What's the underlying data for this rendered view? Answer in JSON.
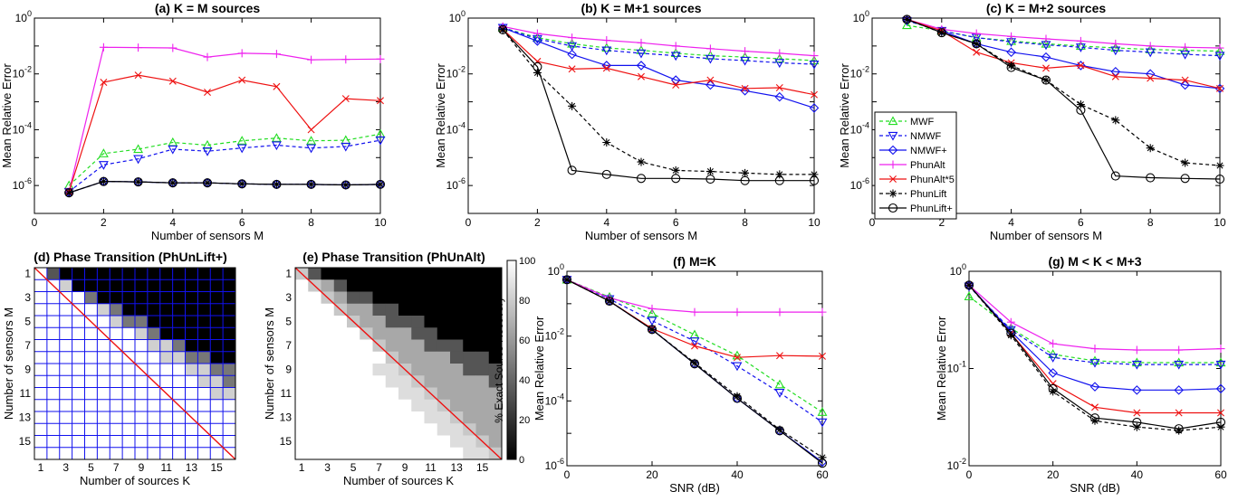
{
  "colors": {
    "MWF": "#22dd22",
    "NMWF": "#1111ee",
    "NMWF+": "#1111ee",
    "PhunAlt": "#ee22ee",
    "PhunAlt*5": "#ee1111",
    "PhunLift": "#000000",
    "PhunLift+": "#000000",
    "grid": "#1111ee",
    "diagonal": "#ee1111"
  },
  "legend": [
    "MWF",
    "NMWF",
    "NMWF+",
    "PhunAlt",
    "PhunAlt*5",
    "PhunLift",
    "PhunLift+"
  ],
  "chart_data": [
    {
      "type": "line",
      "id": "a",
      "title": "(a)  K = M sources",
      "xlabel": "Number of sensors M",
      "ylabel": "Mean Relative Error",
      "yscale": "log",
      "ylim": [
        1e-07,
        1
      ],
      "xlim": [
        0,
        10
      ],
      "xticks": [
        "0",
        "2",
        "4",
        "6",
        "8",
        "10"
      ],
      "x": [
        1,
        2,
        3,
        4,
        5,
        6,
        7,
        8,
        9,
        10
      ],
      "series": [
        {
          "name": "MWF",
          "values": [
            1e-06,
            1.4e-05,
            2e-05,
            3.5e-05,
            2.8e-05,
            4e-05,
            5e-05,
            4e-05,
            4.2e-05,
            7e-05
          ]
        },
        {
          "name": "NMWF",
          "values": [
            6e-07,
            5.5e-06,
            9e-06,
            2e-05,
            1.7e-05,
            2.2e-05,
            2.8e-05,
            2.2e-05,
            2.5e-05,
            4.2e-05
          ]
        },
        {
          "name": "NMWF+",
          "values": [
            5.5e-07,
            1.4e-06,
            1.35e-06,
            1.25e-06,
            1.25e-06,
            1.15e-06,
            1.1e-06,
            1.1e-06,
            1.05e-06,
            1.1e-06
          ]
        },
        {
          "name": "PhunAlt",
          "values": [
            6e-07,
            0.09,
            0.088,
            0.085,
            0.04,
            0.055,
            0.052,
            0.032,
            0.033,
            0.034
          ]
        },
        {
          "name": "PhunAlt*5",
          "values": [
            6e-07,
            0.005,
            0.009,
            0.0055,
            0.0022,
            0.006,
            0.0035,
            0.0001,
            0.0013,
            0.0011
          ]
        },
        {
          "name": "PhunLift",
          "values": [
            5.5e-07,
            1.4e-06,
            1.35e-06,
            1.25e-06,
            1.25e-06,
            1.15e-06,
            1.1e-06,
            1.1e-06,
            1.05e-06,
            1.1e-06
          ]
        },
        {
          "name": "PhunLift+",
          "values": [
            5.5e-07,
            1.4e-06,
            1.35e-06,
            1.25e-06,
            1.25e-06,
            1.15e-06,
            1.1e-06,
            1.1e-06,
            1.05e-06,
            1.1e-06
          ]
        }
      ]
    },
    {
      "type": "line",
      "id": "b",
      "title": "(b)  K = M+1 sources",
      "xlabel": "Number of sensors M",
      "ylabel": "Mean Relative Error",
      "yscale": "log",
      "ylim": [
        1e-07,
        1
      ],
      "xlim": [
        0,
        10
      ],
      "xticks": [
        "0",
        "2",
        "4",
        "6",
        "8",
        "10"
      ],
      "x": [
        1,
        2,
        3,
        4,
        5,
        6,
        7,
        8,
        9,
        10
      ],
      "series": [
        {
          "name": "MWF",
          "values": [
            0.45,
            0.2,
            0.12,
            0.085,
            0.07,
            0.055,
            0.045,
            0.04,
            0.035,
            0.03
          ]
        },
        {
          "name": "NMWF",
          "values": [
            0.45,
            0.18,
            0.1,
            0.07,
            0.055,
            0.045,
            0.035,
            0.03,
            0.025,
            0.022
          ]
        },
        {
          "name": "NMWF+",
          "values": [
            0.45,
            0.15,
            0.05,
            0.02,
            0.02,
            0.006,
            0.004,
            0.0025,
            0.0015,
            0.0006
          ]
        },
        {
          "name": "PhunAlt",
          "values": [
            0.5,
            0.28,
            0.2,
            0.16,
            0.13,
            0.1,
            0.08,
            0.065,
            0.055,
            0.045
          ]
        },
        {
          "name": "PhunAlt*5",
          "values": [
            0.4,
            0.028,
            0.015,
            0.016,
            0.008,
            0.004,
            0.006,
            0.003,
            0.0032,
            0.0018
          ]
        },
        {
          "name": "PhunLift",
          "values": [
            0.38,
            0.011,
            0.0007,
            3.5e-05,
            7e-06,
            3.5e-06,
            3.2e-06,
            2.8e-06,
            2.5e-06,
            2.5e-06
          ]
        },
        {
          "name": "PhunLift+",
          "values": [
            0.38,
            0.018,
            3.5e-06,
            2.5e-06,
            1.8e-06,
            1.8e-06,
            1.7e-06,
            1.5e-06,
            1.5e-06,
            1.5e-06
          ]
        }
      ]
    },
    {
      "type": "line",
      "id": "c",
      "title": "(c)  K = M+2 sources",
      "xlabel": "Number of sensors M",
      "ylabel": "Mean Relative Error",
      "yscale": "log",
      "ylim": [
        1e-07,
        1
      ],
      "xlim": [
        0,
        10
      ],
      "xticks": [
        "0",
        "2",
        "4",
        "6",
        "8",
        "10"
      ],
      "x": [
        1,
        2,
        3,
        4,
        5,
        6,
        7,
        8,
        9,
        10
      ],
      "series": [
        {
          "name": "MWF",
          "values": [
            0.55,
            0.35,
            0.2,
            0.15,
            0.12,
            0.1,
            0.085,
            0.075,
            0.07,
            0.065
          ]
        },
        {
          "name": "NMWF",
          "values": [
            0.8,
            0.35,
            0.2,
            0.14,
            0.11,
            0.09,
            0.07,
            0.06,
            0.05,
            0.045
          ]
        },
        {
          "name": "NMWF+",
          "values": [
            0.85,
            0.35,
            0.12,
            0.06,
            0.04,
            0.02,
            0.012,
            0.01,
            0.004,
            0.003
          ]
        },
        {
          "name": "PhunAlt",
          "values": [
            0.9,
            0.4,
            0.28,
            0.22,
            0.18,
            0.15,
            0.12,
            0.1,
            0.09,
            0.085
          ]
        },
        {
          "name": "PhunAlt*5",
          "values": [
            0.9,
            0.35,
            0.06,
            0.025,
            0.016,
            0.02,
            0.008,
            0.007,
            0.006,
            0.003
          ]
        },
        {
          "name": "PhunLift",
          "values": [
            0.9,
            0.3,
            0.12,
            0.02,
            0.006,
            0.0008,
            0.00022,
            2.2e-05,
            6.5e-06,
            5.2e-06
          ]
        },
        {
          "name": "PhunLift+",
          "values": [
            0.9,
            0.3,
            0.12,
            0.017,
            0.006,
            0.0005,
            2.2e-06,
            1.9e-06,
            1.8e-06,
            1.7e-06
          ]
        }
      ]
    },
    {
      "type": "heatmap",
      "id": "d",
      "title": "(d) Phase Transition (PhUnLift+)",
      "xlabel": "Number of sources K",
      "ylabel": "Number of sensors M",
      "xticks": [
        "1",
        "3",
        "5",
        "7",
        "9",
        "11",
        "13",
        "15"
      ],
      "yticks": [
        "1",
        "3",
        "5",
        "7",
        "9",
        "11",
        "13",
        "15"
      ],
      "grid": true,
      "rows": [
        "##,,,,,,,,,,,,,,",
        "#+#,,,,,,,,,,,,,",
        "##+##,,,,,,,,,,,",
        "###+#,,,,,,,,,,,",
        "####+##,,,,,,,,,",
        "#####+###,,,,,,,",
        "######+##,,,,,,,",
        "#######+###,,,,,",
        "########+###,,,,",
        "#########+####,,",
        "##########+#####",
        "###########+####",
        "############+###",
        "#############+##",
        "##############+#",
        "###############+"
      ]
    },
    {
      "type": "heatmap",
      "id": "e",
      "title": "(e) Phase Transition (PhUnAlt)",
      "xlabel": "Number of sources K",
      "ylabel": "Number of sensors M",
      "colorbar_label": "% Exact Source Recovery",
      "colorbar_ticks": [
        "0",
        "20",
        "40",
        "60",
        "80",
        "100"
      ],
      "xticks": [
        "1",
        "3",
        "5",
        "7",
        "9",
        "11",
        "13",
        "15"
      ],
      "yticks": [
        "1",
        "3",
        "5",
        "7",
        "9",
        "11",
        "13",
        "15"
      ],
      "grid": false
    },
    {
      "type": "line",
      "id": "f",
      "title": "(f)  M=K",
      "xlabel": "SNR (dB)",
      "ylabel": "Mean Relative Error",
      "yscale": "log",
      "ylim": [
        1e-06,
        1
      ],
      "xlim": [
        0,
        60
      ],
      "xticks": [
        "0",
        "20",
        "40",
        "60"
      ],
      "x": [
        0,
        10,
        20,
        30,
        40,
        50,
        60
      ],
      "series": [
        {
          "name": "MWF",
          "values": [
            0.55,
            0.16,
            0.05,
            0.011,
            0.0025,
            0.00032,
            4.5e-05
          ]
        },
        {
          "name": "NMWF",
          "values": [
            0.55,
            0.14,
            0.03,
            0.007,
            0.0012,
            0.00018,
            2.2e-05
          ]
        },
        {
          "name": "NMWF+",
          "values": [
            0.55,
            0.12,
            0.016,
            0.0014,
            0.00012,
            1.2e-05,
            1.3e-06
          ]
        },
        {
          "name": "PhunAlt",
          "values": [
            0.55,
            0.15,
            0.07,
            0.055,
            0.055,
            0.055,
            0.055
          ]
        },
        {
          "name": "PhunAlt*5",
          "values": [
            0.55,
            0.12,
            0.017,
            0.005,
            0.0022,
            0.0025,
            0.0024
          ]
        },
        {
          "name": "PhunLift",
          "values": [
            0.55,
            0.12,
            0.016,
            0.0015,
            0.00014,
            1.3e-05,
            1.8e-06
          ]
        },
        {
          "name": "PhunLift+",
          "values": [
            0.55,
            0.12,
            0.016,
            0.0014,
            0.00012,
            1.2e-05,
            1.2e-06
          ]
        }
      ]
    },
    {
      "type": "line",
      "id": "g",
      "title": "(g)  M < K < M+3",
      "xlabel": "SNR (dB)",
      "ylabel": "Mean Relative Error",
      "yscale": "log",
      "ylim": [
        0.01,
        1
      ],
      "xlim": [
        0,
        60
      ],
      "xticks": [
        "0",
        "20",
        "40",
        "60"
      ],
      "x": [
        0,
        10,
        20,
        30,
        40,
        50,
        60
      ],
      "series": [
        {
          "name": "MWF",
          "values": [
            0.55,
            0.26,
            0.14,
            0.12,
            0.115,
            0.115,
            0.115
          ]
        },
        {
          "name": "NMWF",
          "values": [
            0.7,
            0.25,
            0.13,
            0.115,
            0.11,
            0.11,
            0.11
          ]
        },
        {
          "name": "NMWF+",
          "values": [
            0.72,
            0.24,
            0.09,
            0.065,
            0.06,
            0.06,
            0.062
          ]
        },
        {
          "name": "PhunAlt",
          "values": [
            0.72,
            0.3,
            0.18,
            0.16,
            0.155,
            0.155,
            0.16
          ]
        },
        {
          "name": "PhunAlt*5",
          "values": [
            0.72,
            0.23,
            0.07,
            0.04,
            0.035,
            0.035,
            0.035
          ]
        },
        {
          "name": "PhunLift",
          "values": [
            0.72,
            0.22,
            0.058,
            0.029,
            0.025,
            0.023,
            0.025
          ]
        },
        {
          "name": "PhunLift+",
          "values": [
            0.72,
            0.23,
            0.062,
            0.031,
            0.028,
            0.024,
            0.028
          ]
        }
      ]
    }
  ]
}
